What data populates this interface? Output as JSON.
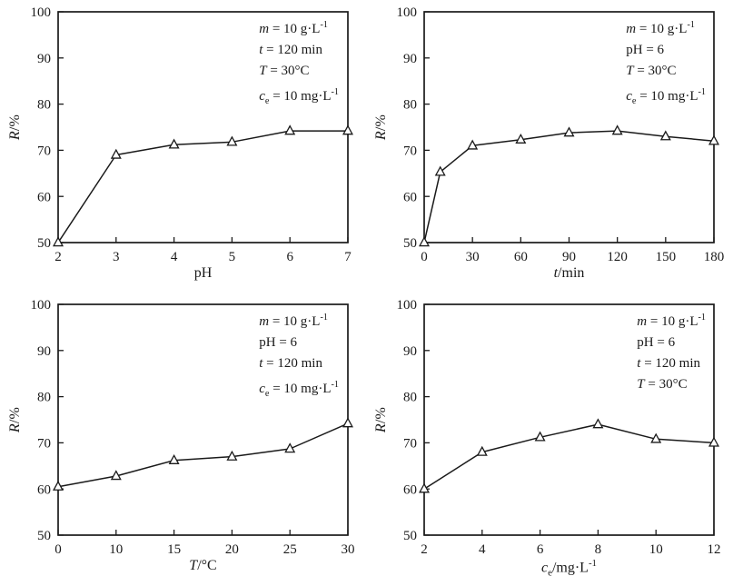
{
  "figure": {
    "background_color": "#ffffff",
    "line_color": "#1a1a1a",
    "marker_fill": "#ffffff",
    "marker_style": "open-triangle-up",
    "layout": "2x2-panel-figure"
  },
  "chart_data": [
    {
      "id": "ph-effect",
      "type": "line",
      "title": "",
      "xlabel": [
        {
          "text": "pH"
        }
      ],
      "ylabel": [
        {
          "text": "R",
          "italic": true
        },
        {
          "text": "/%"
        }
      ],
      "x": [
        2,
        3,
        4,
        5,
        6,
        7
      ],
      "values": [
        50,
        69,
        71.2,
        71.8,
        74.2,
        74.2
      ],
      "x_tick_values": [
        2,
        3,
        4,
        5,
        6,
        7
      ],
      "x_tick_labels": [
        "2",
        "3",
        "4",
        "5",
        "6",
        "7"
      ],
      "ylim": [
        50,
        100
      ],
      "y_ticks": [
        50,
        60,
        70,
        80,
        90,
        100
      ],
      "grid": false,
      "legend": null,
      "annotation": [
        [
          {
            "text": "m",
            "italic": true
          },
          {
            "text": " = 10 g·L"
          },
          {
            "text": "-1",
            "sup": true
          }
        ],
        [
          {
            "text": "t",
            "italic": true
          },
          {
            "text": " = 120 min"
          }
        ],
        [
          {
            "text": "T",
            "italic": true
          },
          {
            "text": " = 30°C"
          }
        ],
        [
          {
            "text": "c",
            "italic": true
          },
          {
            "text": "e",
            "sub": true
          },
          {
            "text": " = 10 mg·L"
          },
          {
            "text": "-1",
            "sup": true
          }
        ]
      ]
    },
    {
      "id": "contact-time-effect",
      "type": "line",
      "title": "",
      "xlabel": [
        {
          "text": "t",
          "italic": true
        },
        {
          "text": "/min"
        }
      ],
      "ylabel": [
        {
          "text": "R",
          "italic": true
        },
        {
          "text": "/%"
        }
      ],
      "x": [
        0,
        10,
        30,
        60,
        90,
        120,
        150,
        180
      ],
      "values": [
        50,
        65.3,
        71,
        72.3,
        73.8,
        74.2,
        73,
        72
      ],
      "x_tick_values": [
        0,
        30,
        60,
        90,
        120,
        150,
        180
      ],
      "x_tick_labels": [
        "0",
        "30",
        "60",
        "90",
        "120",
        "150",
        "180"
      ],
      "ylim": [
        50,
        100
      ],
      "y_ticks": [
        50,
        60,
        70,
        80,
        90,
        100
      ],
      "grid": false,
      "legend": null,
      "annotation": [
        [
          {
            "text": "m",
            "italic": true
          },
          {
            "text": " = 10 g·L"
          },
          {
            "text": "-1",
            "sup": true
          }
        ],
        [
          {
            "text": "pH = 6"
          }
        ],
        [
          {
            "text": "T",
            "italic": true
          },
          {
            "text": " = 30°C"
          }
        ],
        [
          {
            "text": "c",
            "italic": true
          },
          {
            "text": "e",
            "sub": true
          },
          {
            "text": " = 10 mg·L"
          },
          {
            "text": "-1",
            "sup": true
          }
        ]
      ]
    },
    {
      "id": "temperature-effect",
      "type": "line",
      "title": "",
      "xlabel": [
        {
          "text": "T",
          "italic": true
        },
        {
          "text": "/°C"
        }
      ],
      "ylabel": [
        {
          "text": "R",
          "italic": true
        },
        {
          "text": "/%"
        }
      ],
      "x": [
        0,
        10,
        15,
        20,
        25,
        30
      ],
      "values": [
        60.5,
        62.8,
        66.2,
        67,
        68.7,
        74.2
      ],
      "x_tick_values": [
        0,
        10,
        15,
        20,
        25,
        30
      ],
      "x_tick_labels": [
        "0",
        "10",
        "15",
        "20",
        "25",
        "30"
      ],
      "ylim": [
        50,
        100
      ],
      "y_ticks": [
        50,
        60,
        70,
        80,
        90,
        100
      ],
      "grid": false,
      "legend": null,
      "annotation": [
        [
          {
            "text": "m",
            "italic": true
          },
          {
            "text": " = 10 g·L"
          },
          {
            "text": "-1",
            "sup": true
          }
        ],
        [
          {
            "text": "pH = 6"
          }
        ],
        [
          {
            "text": "t",
            "italic": true
          },
          {
            "text": " = 120 min"
          }
        ],
        [
          {
            "text": "c",
            "italic": true
          },
          {
            "text": "e",
            "sub": true
          },
          {
            "text": " = 10 mg·L"
          },
          {
            "text": "-1",
            "sup": true
          }
        ]
      ]
    },
    {
      "id": "initial-concentration-effect",
      "type": "line",
      "title": "",
      "xlabel": [
        {
          "text": "c",
          "italic": true
        },
        {
          "text": "e",
          "sub": true
        },
        {
          "text": "/mg·L"
        },
        {
          "text": "-1",
          "sup": true
        }
      ],
      "ylabel": [
        {
          "text": "R",
          "italic": true
        },
        {
          "text": "/%"
        }
      ],
      "x": [
        2,
        4,
        6,
        8,
        10,
        12
      ],
      "values": [
        60,
        68,
        71.2,
        74,
        70.8,
        70
      ],
      "x_tick_values": [
        2,
        4,
        6,
        8,
        10,
        12
      ],
      "x_tick_labels": [
        "2",
        "4",
        "6",
        "8",
        "10",
        "12"
      ],
      "ylim": [
        50,
        100
      ],
      "y_ticks": [
        50,
        60,
        70,
        80,
        90,
        100
      ],
      "grid": false,
      "legend": null,
      "annotation": [
        [
          {
            "text": "m",
            "italic": true
          },
          {
            "text": " = 10 g·L"
          },
          {
            "text": "-1",
            "sup": true
          }
        ],
        [
          {
            "text": "pH = 6"
          }
        ],
        [
          {
            "text": "t",
            "italic": true
          },
          {
            "text": " = 120 min"
          }
        ],
        [
          {
            "text": "T",
            "italic": true
          },
          {
            "text": " = 30°C"
          }
        ]
      ]
    }
  ]
}
